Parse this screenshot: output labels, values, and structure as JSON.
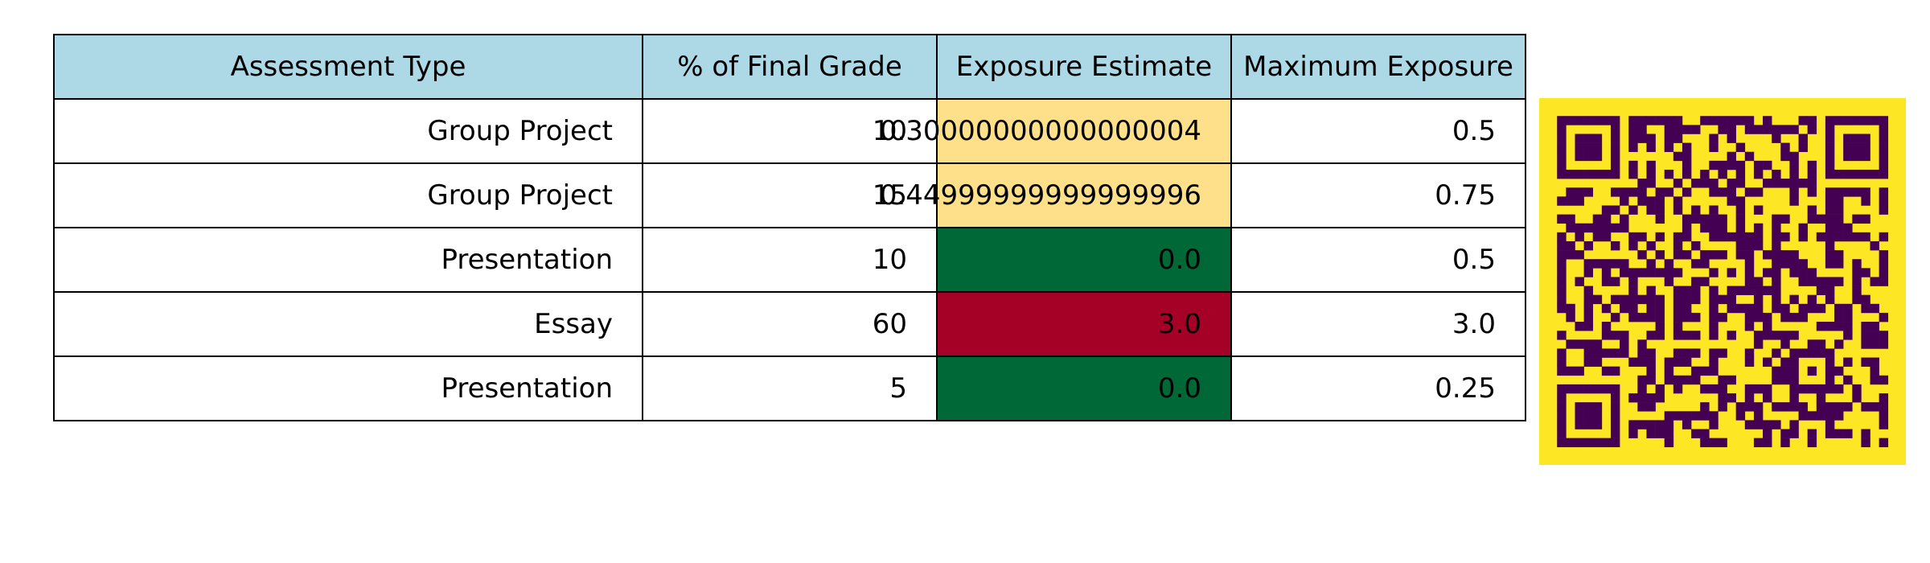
{
  "chart_data": {
    "type": "table",
    "columns": [
      "Assessment Type",
      "% of Final Grade",
      "Exposure Estimate",
      "Maximum Exposure"
    ],
    "rows": [
      {
        "type": "Group Project",
        "pct": "10",
        "exposure": "0.30000000000000004",
        "max": "0.5",
        "exposure_color": "#fee08b"
      },
      {
        "type": "Group Project",
        "pct": "15",
        "exposure": "0.44999999999999996",
        "max": "0.75",
        "exposure_color": "#fee08b"
      },
      {
        "type": "Presentation",
        "pct": "10",
        "exposure": "0.0",
        "max": "0.5",
        "exposure_color": "#006837"
      },
      {
        "type": "Essay",
        "pct": "60",
        "exposure": "3.0",
        "max": "3.0",
        "exposure_color": "#a50026"
      },
      {
        "type": "Presentation",
        "pct": "5",
        "exposure": "0.0",
        "max": "0.25",
        "exposure_color": "#006837"
      }
    ],
    "header_color": "#add8e6"
  },
  "qr": {
    "background": "#fde725",
    "foreground": "#440154",
    "modules": 37
  }
}
